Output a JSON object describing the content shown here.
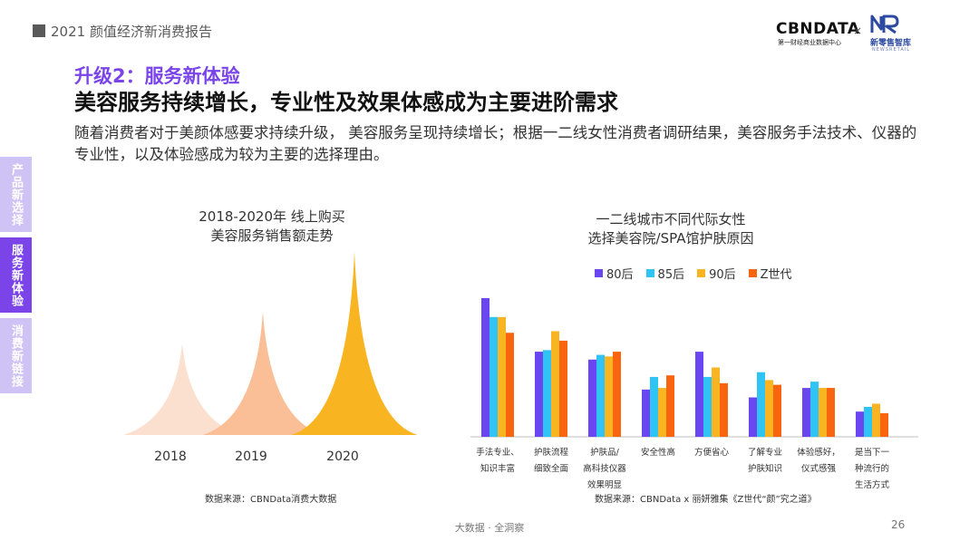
{
  "header": {
    "report_title": "2021 颜值经济新消费报告",
    "logo_cbn": "CBNDATA",
    "logo_cbn_sub": "第一财经商业数据中心",
    "logo_times": "×",
    "logo_nr_cn": "新零售智库",
    "logo_nr_en": "NEWSRETAIL"
  },
  "section_title": "升级2：服务新体验",
  "main_title": "美容服务持续增长，专业性及效果体感成为主要进阶需求",
  "description": "随着消费者对于美颜体感要求持续升级， 美容服务呈现持续增长；根据一二线女性消费者调研结果，美容服务手法技术、仪器的专业性，以及体验感成为较为主要的选择理由。",
  "side_tabs": [
    "产品新选择",
    "服务新体验",
    "消费新链接"
  ],
  "left_chart": {
    "title_line1": "2018-2020年 线上购买",
    "title_line2": "美容服务销售额走势",
    "source": "数据来源：CBNData消费大数据"
  },
  "right_chart": {
    "title_line1": "一二线城市不同代际女性",
    "title_line2": "选择美容院/SPA馆护肤原因",
    "source": "数据来源：CBNData x 丽妍雅集《Z世代“颜”究之道》"
  },
  "footer": "大数据 · 全洞察",
  "page_number": "26",
  "colors": {
    "accent": "#7a44e8",
    "peak_2018": "#fbe0cf",
    "peak_2019": "#fbbf98",
    "peak_2020": "#f8b421",
    "s80": "#6a46f0",
    "s85": "#2fc4f3",
    "s90": "#f8b421",
    "sZ": "#f9640f"
  },
  "chart_data": [
    {
      "type": "area",
      "categories": [
        "2018",
        "2019",
        "2020"
      ],
      "values": [
        1.0,
        1.35,
        2.0
      ]
    },
    {
      "type": "bar",
      "categories": [
        [
          "手法专业、",
          "知识丰富"
        ],
        [
          "护肤流程",
          "细致全面"
        ],
        [
          "护肤品/",
          "高科技仪器",
          "效果明显"
        ],
        [
          "安全性高"
        ],
        [
          "方便省心"
        ],
        [
          "了解专业",
          "护肤知识"
        ],
        [
          "体验感好，",
          "仪式感强"
        ],
        [
          "是当下一",
          "种流行的",
          "生活方式"
        ]
      ],
      "series": [
        {
          "name": "80后",
          "values": [
            44,
            27,
            24.5,
            15,
            27,
            12.5,
            15.5,
            8
          ]
        },
        {
          "name": "85后",
          "values": [
            38,
            27.5,
            26,
            19,
            19,
            20.5,
            17.5,
            9.5
          ]
        },
        {
          "name": "90后",
          "values": [
            38,
            33.5,
            25.5,
            15.5,
            22,
            18,
            15.5,
            10.5
          ]
        },
        {
          "name": "Z世代",
          "values": [
            33,
            30.5,
            27,
            19.5,
            17,
            16.5,
            15.5,
            7.5
          ]
        }
      ]
    }
  ]
}
